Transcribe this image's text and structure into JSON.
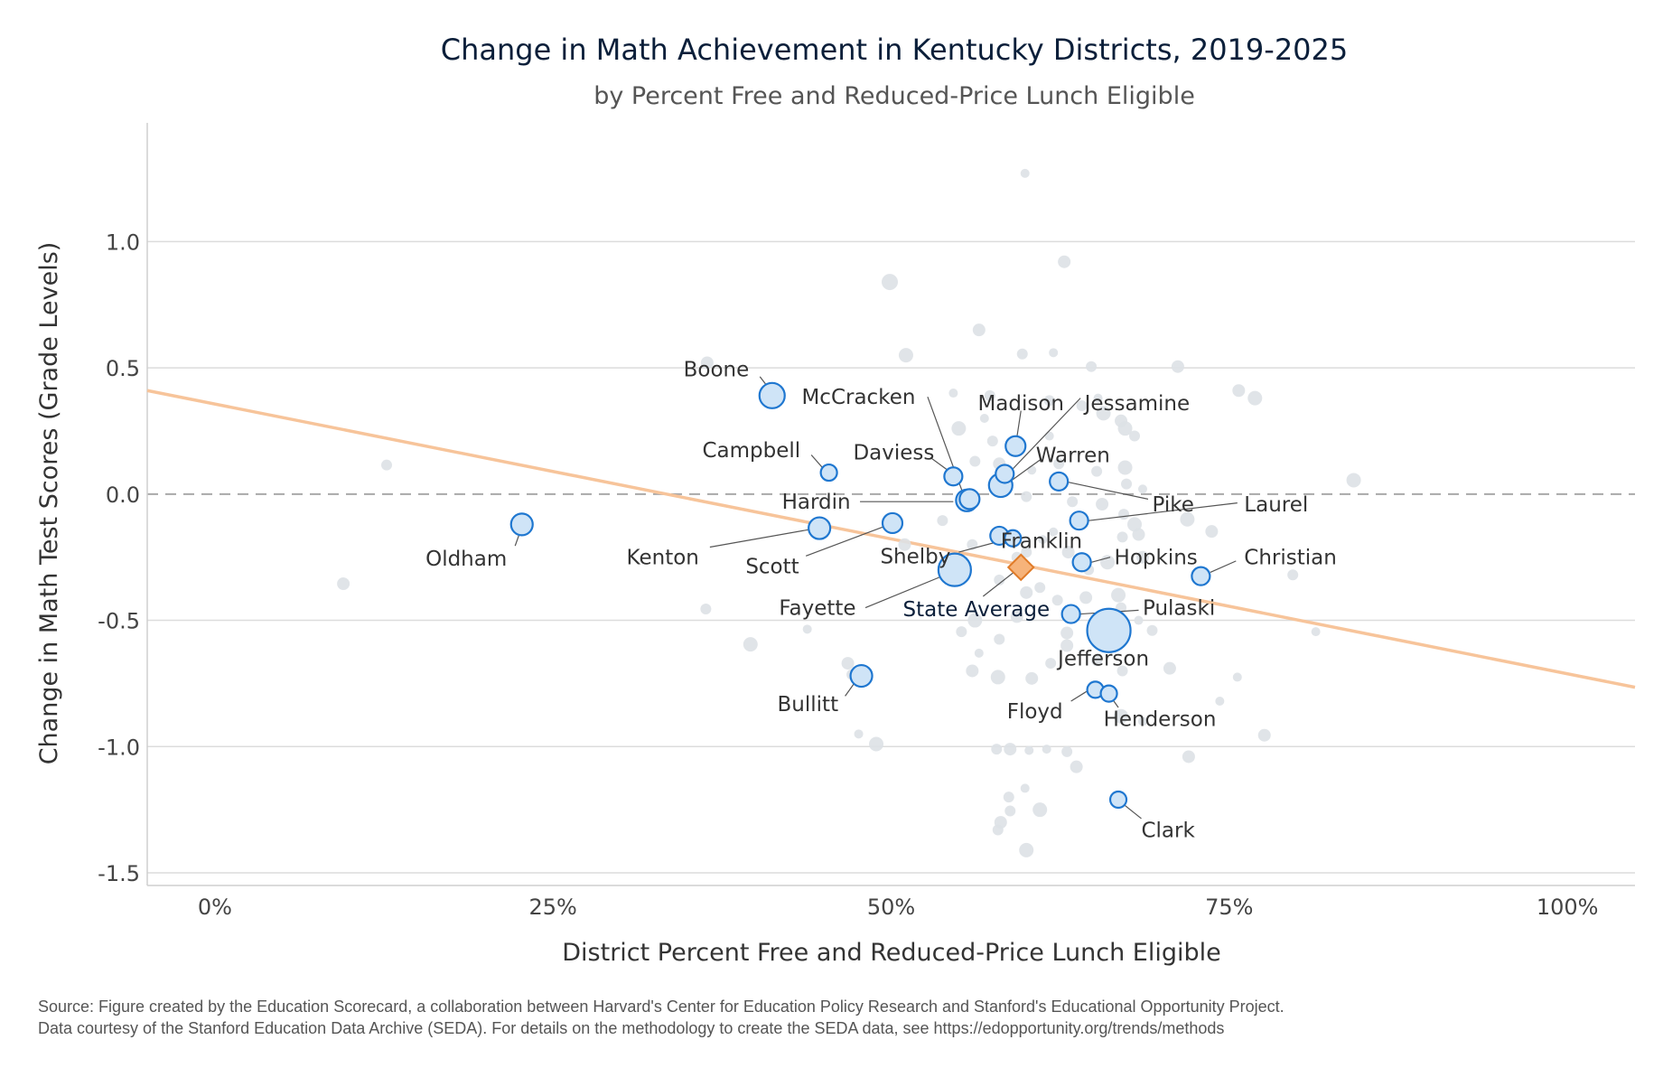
{
  "chart_data": {
    "type": "scatter",
    "title": "Change in Math Achievement in Kentucky Districts, 2019-2025",
    "subtitle": "by Percent Free and Reduced-Price Lunch Eligible",
    "xlabel": "District Percent Free and Reduced-Price Lunch Eligible",
    "ylabel": "Change in Math Test Scores (Grade Levels)",
    "xlim": [
      -0.05,
      1.05
    ],
    "ylim": [
      -1.55,
      1.47
    ],
    "x_ticks": [
      {
        "value": 0,
        "label": "0%"
      },
      {
        "value": 0.25,
        "label": "25%"
      },
      {
        "value": 0.5,
        "label": "50%"
      },
      {
        "value": 0.75,
        "label": "75%"
      },
      {
        "value": 1.0,
        "label": "100%"
      }
    ],
    "y_ticks": [
      {
        "value": 1.0,
        "label": "1.0"
      },
      {
        "value": 0.5,
        "label": "0.5"
      },
      {
        "value": 0.0,
        "label": "0.0"
      },
      {
        "value": -0.5,
        "label": "-0.5"
      },
      {
        "value": -1.0,
        "label": "-1.0"
      },
      {
        "value": -1.5,
        "label": "-1.5"
      }
    ],
    "grid": "horizontal",
    "zero_line": "dashed",
    "trend_line": {
      "x": [
        -0.05,
        1.05
      ],
      "y": [
        0.41,
        -0.765
      ],
      "color": "#f7c49a"
    },
    "colors": {
      "highlight_fill": "#cfe4f7",
      "highlight_stroke": "#1f77d0",
      "background_point": "#dde1e6",
      "state_fill": "#f6b37a",
      "state_stroke": "#e07b28",
      "grid": "#dcdcdc"
    },
    "highlighted_districts": [
      {
        "name": "Boone",
        "x": 0.412,
        "y": 0.39,
        "size": 14
      },
      {
        "name": "McCracken",
        "x": 0.558,
        "y": -0.02,
        "size": 11
      },
      {
        "name": "Madison",
        "x": 0.592,
        "y": 0.19,
        "size": 11
      },
      {
        "name": "Jessamine",
        "x": 0.584,
        "y": 0.08,
        "size": 10
      },
      {
        "name": "Campbell",
        "x": 0.454,
        "y": 0.085,
        "size": 9
      },
      {
        "name": "Daviess",
        "x": 0.546,
        "y": 0.07,
        "size": 10
      },
      {
        "name": "Warren",
        "x": 0.581,
        "y": 0.035,
        "size": 13
      },
      {
        "name": "Pike",
        "x": 0.624,
        "y": 0.05,
        "size": 10
      },
      {
        "name": "Laurel",
        "x": 0.639,
        "y": -0.105,
        "size": 10
      },
      {
        "name": "Hardin",
        "x": 0.556,
        "y": -0.025,
        "size": 12
      },
      {
        "name": "Oldham",
        "x": 0.227,
        "y": -0.12,
        "size": 12
      },
      {
        "name": "Kenton",
        "x": 0.447,
        "y": -0.135,
        "size": 12
      },
      {
        "name": "Scott",
        "x": 0.501,
        "y": -0.115,
        "size": 11
      },
      {
        "name": "Franklin",
        "x": 0.58,
        "y": -0.165,
        "size": 10
      },
      {
        "name": "Shelby",
        "x": 0.59,
        "y": -0.175,
        "size": 9
      },
      {
        "name": "Hopkins",
        "x": 0.641,
        "y": -0.27,
        "size": 10
      },
      {
        "name": "Christian",
        "x": 0.729,
        "y": -0.325,
        "size": 10
      },
      {
        "name": "Fayette",
        "x": 0.547,
        "y": -0.3,
        "size": 18
      },
      {
        "name": "Pulaski",
        "x": 0.633,
        "y": -0.475,
        "size": 10
      },
      {
        "name": "Jefferson",
        "x": 0.661,
        "y": -0.54,
        "size": 24
      },
      {
        "name": "Bullitt",
        "x": 0.478,
        "y": -0.72,
        "size": 12
      },
      {
        "name": "Floyd",
        "x": 0.651,
        "y": -0.775,
        "size": 9
      },
      {
        "name": "Henderson",
        "x": 0.661,
        "y": -0.79,
        "size": 9
      },
      {
        "name": "Clark",
        "x": 0.668,
        "y": -1.21,
        "size": 9
      }
    ],
    "state_average": {
      "name": "State Average",
      "x": 0.596,
      "y": -0.29
    },
    "other_districts": [
      [
        0.599,
        1.27,
        5
      ],
      [
        0.628,
        0.92,
        7
      ],
      [
        0.499,
        0.84,
        9
      ],
      [
        0.565,
        0.65,
        7
      ],
      [
        0.511,
        0.55,
        8
      ],
      [
        0.597,
        0.555,
        6
      ],
      [
        0.62,
        0.56,
        5
      ],
      [
        0.648,
        0.505,
        6
      ],
      [
        0.712,
        0.505,
        7
      ],
      [
        0.364,
        0.52,
        7
      ],
      [
        0.127,
        0.115,
        6
      ],
      [
        0.095,
        -0.355,
        7
      ],
      [
        0.363,
        -0.455,
        6
      ],
      [
        0.396,
        -0.595,
        8
      ],
      [
        0.546,
        0.4,
        5
      ],
      [
        0.573,
        0.39,
        6
      ],
      [
        0.617,
        0.37,
        6
      ],
      [
        0.641,
        0.35,
        6
      ],
      [
        0.653,
        0.38,
        5
      ],
      [
        0.657,
        0.32,
        8
      ],
      [
        0.67,
        0.29,
        7
      ],
      [
        0.673,
        0.26,
        8
      ],
      [
        0.68,
        0.23,
        6
      ],
      [
        0.569,
        0.3,
        5
      ],
      [
        0.55,
        0.26,
        8
      ],
      [
        0.575,
        0.21,
        6
      ],
      [
        0.617,
        0.23,
        5
      ],
      [
        0.757,
        0.41,
        7
      ],
      [
        0.769,
        0.38,
        8
      ],
      [
        0.842,
        0.055,
        8
      ],
      [
        0.562,
        0.13,
        6
      ],
      [
        0.58,
        0.12,
        7
      ],
      [
        0.604,
        0.095,
        5
      ],
      [
        0.624,
        0.12,
        6
      ],
      [
        0.652,
        0.09,
        6
      ],
      [
        0.673,
        0.105,
        8
      ],
      [
        0.674,
        0.04,
        6
      ],
      [
        0.686,
        0.02,
        5
      ],
      [
        0.6,
        -0.01,
        6
      ],
      [
        0.634,
        -0.03,
        6
      ],
      [
        0.656,
        -0.04,
        7
      ],
      [
        0.672,
        -0.08,
        6
      ],
      [
        0.68,
        -0.12,
        8
      ],
      [
        0.683,
        -0.16,
        7
      ],
      [
        0.671,
        -0.17,
        6
      ],
      [
        0.719,
        -0.1,
        8
      ],
      [
        0.737,
        -0.148,
        7
      ],
      [
        0.64,
        -0.1,
        6
      ],
      [
        0.62,
        -0.15,
        5
      ],
      [
        0.538,
        -0.105,
        6
      ],
      [
        0.51,
        -0.2,
        7
      ],
      [
        0.56,
        -0.2,
        6
      ],
      [
        0.6,
        -0.23,
        6
      ],
      [
        0.612,
        -0.18,
        5
      ],
      [
        0.631,
        -0.23,
        7
      ],
      [
        0.646,
        -0.3,
        6
      ],
      [
        0.66,
        -0.27,
        8
      ],
      [
        0.686,
        -0.25,
        7
      ],
      [
        0.593,
        -0.25,
        6
      ],
      [
        0.58,
        -0.34,
        6
      ],
      [
        0.6,
        -0.39,
        7
      ],
      [
        0.61,
        -0.37,
        6
      ],
      [
        0.623,
        -0.42,
        6
      ],
      [
        0.644,
        -0.41,
        7
      ],
      [
        0.668,
        -0.4,
        8
      ],
      [
        0.67,
        -0.45,
        6
      ],
      [
        0.693,
        -0.54,
        6
      ],
      [
        0.683,
        -0.5,
        5
      ],
      [
        0.63,
        -0.55,
        7
      ],
      [
        0.562,
        -0.5,
        8
      ],
      [
        0.552,
        -0.545,
        6
      ],
      [
        0.58,
        -0.575,
        6
      ],
      [
        0.593,
        -0.485,
        7
      ],
      [
        0.565,
        -0.63,
        5
      ],
      [
        0.56,
        -0.7,
        7
      ],
      [
        0.579,
        -0.725,
        8
      ],
      [
        0.604,
        -0.73,
        7
      ],
      [
        0.618,
        -0.67,
        6
      ],
      [
        0.63,
        -0.6,
        7
      ],
      [
        0.652,
        -0.66,
        6
      ],
      [
        0.671,
        -0.7,
        6
      ],
      [
        0.706,
        -0.69,
        7
      ],
      [
        0.67,
        -0.88,
        8
      ],
      [
        0.686,
        -0.9,
        5
      ],
      [
        0.743,
        -0.82,
        5
      ],
      [
        0.756,
        -0.725,
        5
      ],
      [
        0.776,
        -0.955,
        7
      ],
      [
        0.814,
        -0.545,
        5
      ],
      [
        0.797,
        -0.32,
        6
      ],
      [
        0.476,
        -0.95,
        5
      ],
      [
        0.489,
        -0.99,
        8
      ],
      [
        0.578,
        -1.01,
        6
      ],
      [
        0.588,
        -1.01,
        7
      ],
      [
        0.602,
        -1.015,
        5
      ],
      [
        0.615,
        -1.01,
        5
      ],
      [
        0.63,
        -1.02,
        6
      ],
      [
        0.637,
        -1.08,
        7
      ],
      [
        0.72,
        -1.04,
        7
      ],
      [
        0.599,
        -1.165,
        5
      ],
      [
        0.587,
        -1.2,
        6
      ],
      [
        0.61,
        -1.25,
        8
      ],
      [
        0.588,
        -1.255,
        6
      ],
      [
        0.581,
        -1.3,
        7
      ],
      [
        0.579,
        -1.33,
        6
      ],
      [
        0.6,
        -1.41,
        8
      ],
      [
        0.468,
        -0.67,
        7
      ],
      [
        0.471,
        -0.715,
        6
      ],
      [
        0.438,
        -0.535,
        5
      ]
    ],
    "annotations": [
      {
        "label": "Boone",
        "lx": 0.395,
        "ly": 0.495,
        "anchor": "end",
        "line": [
          0.403,
          0.465,
          0.408,
          0.43
        ]
      },
      {
        "label": "McCracken",
        "lx": 0.518,
        "ly": 0.385,
        "anchor": "end",
        "line": [
          0.527,
          0.385,
          0.553,
          0.005
        ]
      },
      {
        "label": "Madison",
        "lx": 0.596,
        "ly": 0.36,
        "anchor": "middle",
        "line": [
          0.596,
          0.33,
          0.593,
          0.225
        ]
      },
      {
        "label": "Jessamine",
        "lx": 0.643,
        "ly": 0.36,
        "anchor": "start",
        "line": [
          0.64,
          0.38,
          0.59,
          0.1
        ]
      },
      {
        "label": "Campbell",
        "lx": 0.433,
        "ly": 0.175,
        "anchor": "end",
        "line": [
          0.441,
          0.155,
          0.45,
          0.1
        ]
      },
      {
        "label": "Daviess",
        "lx": 0.532,
        "ly": 0.165,
        "anchor": "end",
        "line": [
          0.529,
          0.145,
          0.543,
          0.09
        ]
      },
      {
        "label": "Warren",
        "lx": 0.607,
        "ly": 0.155,
        "anchor": "start",
        "line": [
          0.61,
          0.135,
          0.588,
          0.05
        ]
      },
      {
        "label": "Pike",
        "lx": 0.693,
        "ly": -0.04,
        "anchor": "start",
        "line": [
          0.69,
          -0.02,
          0.631,
          0.047
        ]
      },
      {
        "label": "Laurel",
        "lx": 0.761,
        "ly": -0.04,
        "anchor": "start",
        "line": [
          0.756,
          -0.035,
          0.646,
          -0.105
        ]
      },
      {
        "label": "Hardin",
        "lx": 0.47,
        "ly": -0.03,
        "anchor": "end",
        "line": [
          0.477,
          -0.03,
          0.546,
          -0.03
        ]
      },
      {
        "label": "Oldham",
        "lx": 0.216,
        "ly": -0.255,
        "anchor": "end",
        "line": [
          0.222,
          -0.205,
          0.226,
          -0.145
        ]
      },
      {
        "label": "Kenton",
        "lx": 0.358,
        "ly": -0.25,
        "anchor": "end",
        "line": [
          0.366,
          -0.21,
          0.44,
          -0.14
        ]
      },
      {
        "label": "Scott",
        "lx": 0.432,
        "ly": -0.285,
        "anchor": "end",
        "line": [
          0.437,
          -0.245,
          0.494,
          -0.13
        ]
      },
      {
        "label": "Franklin",
        "lx": 0.581,
        "ly": -0.185,
        "anchor": "start",
        "line": [
          0.583,
          -0.2,
          0.581,
          -0.175
        ]
      },
      {
        "label": "Shelby",
        "lx": 0.544,
        "ly": -0.245,
        "anchor": "end",
        "line": [
          0.55,
          -0.23,
          0.585,
          -0.18
        ]
      },
      {
        "label": "Hopkins",
        "lx": 0.665,
        "ly": -0.25,
        "anchor": "start",
        "line": [
          0.662,
          -0.25,
          0.648,
          -0.27
        ]
      },
      {
        "label": "Christian",
        "lx": 0.761,
        "ly": -0.25,
        "anchor": "start",
        "line": [
          0.755,
          -0.265,
          0.736,
          -0.31
        ]
      },
      {
        "label": "Fayette",
        "lx": 0.474,
        "ly": -0.45,
        "anchor": "end",
        "line": [
          0.481,
          -0.45,
          0.54,
          -0.32
        ]
      },
      {
        "label": "Pulaski",
        "lx": 0.686,
        "ly": -0.45,
        "anchor": "start",
        "line": [
          0.683,
          -0.46,
          0.64,
          -0.475
        ]
      },
      {
        "label": "Jefferson",
        "lx": 0.657,
        "ly": -0.65,
        "anchor": "middle",
        "line": null
      },
      {
        "label": "Bullitt",
        "lx": 0.461,
        "ly": -0.83,
        "anchor": "end",
        "line": [
          0.466,
          -0.8,
          0.474,
          -0.74
        ]
      },
      {
        "label": "Floyd",
        "lx": 0.627,
        "ly": -0.86,
        "anchor": "end",
        "line": [
          0.633,
          -0.82,
          0.645,
          -0.78
        ]
      },
      {
        "label": "Henderson",
        "lx": 0.657,
        "ly": -0.89,
        "anchor": "start",
        "line": [
          0.668,
          -0.845,
          0.662,
          -0.8
        ]
      },
      {
        "label": "Clark",
        "lx": 0.685,
        "ly": -1.33,
        "anchor": "start",
        "line": [
          0.685,
          -1.285,
          0.671,
          -1.225
        ]
      },
      {
        "label": "State Average",
        "lx": 0.563,
        "ly": -0.455,
        "anchor": "middle",
        "line": [
          0.568,
          -0.405,
          0.593,
          -0.3
        ]
      }
    ]
  },
  "source": {
    "line1": "Source: Figure created by the Education Scorecard, a collaboration between Harvard's Center for Education Policy Research and Stanford's Educational Opportunity Project.",
    "line2": "Data courtesy of the Stanford Education Data Archive (SEDA). For details on the methodology to create the SEDA data, see https://edopportunity.org/trends/methods"
  }
}
